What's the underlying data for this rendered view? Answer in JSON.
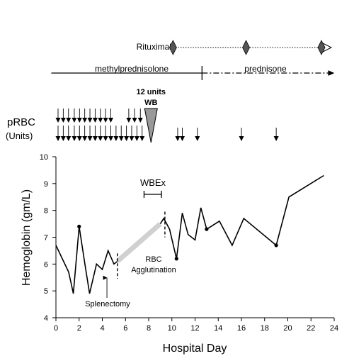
{
  "chart_data": {
    "type": "line",
    "xlabel": "Hospital Day",
    "ylabel": "Hemoglobin (gm/L)",
    "xlim": [
      0,
      24
    ],
    "ylim": [
      4,
      10
    ],
    "x_ticks": [
      "0",
      "2",
      "4",
      "6",
      "8",
      "10",
      "12",
      "14",
      "16",
      "18",
      "20",
      "22",
      "24"
    ],
    "y_ticks": [
      "4",
      "5",
      "6",
      "7",
      "8",
      "9",
      "10"
    ],
    "grid": false,
    "series": [
      {
        "points": [
          [
            0,
            6.7
          ],
          [
            1.1,
            5.7
          ],
          [
            1.5,
            4.9
          ],
          [
            2,
            7.4
          ],
          [
            2.5,
            6.0
          ],
          [
            2.9,
            4.9
          ],
          [
            3.5,
            6.0
          ],
          [
            4.0,
            5.8
          ],
          [
            4.5,
            6.5
          ],
          [
            5.0,
            6.0
          ],
          [
            5.3,
            6.1
          ]
        ]
      },
      {
        "points": [
          [
            9.0,
            7.5
          ],
          [
            9.3,
            7.7
          ],
          [
            9.8,
            7.3
          ],
          [
            10.4,
            6.2
          ],
          [
            10.9,
            7.9
          ],
          [
            11.4,
            7.1
          ],
          [
            12.0,
            6.9
          ],
          [
            12.5,
            8.1
          ],
          [
            13.0,
            7.3
          ],
          [
            14.1,
            7.6
          ],
          [
            15.2,
            6.7
          ],
          [
            16.2,
            7.7
          ],
          [
            19.0,
            6.7
          ],
          [
            20.1,
            8.5
          ],
          [
            23.1,
            9.3
          ]
        ]
      }
    ],
    "marked_points": [
      [
        2,
        7.4
      ],
      [
        10.4,
        6.2
      ],
      [
        13.0,
        7.3
      ],
      [
        19.0,
        6.7
      ]
    ],
    "gap_segment": {
      "from": [
        5.3,
        6.1
      ],
      "to": [
        9.0,
        7.5
      ],
      "color": "#d0d0d0"
    },
    "annotations": {
      "splenectomy": {
        "text": "Splenectomy",
        "x": 4.4,
        "y": 5.7
      },
      "rbc_agglutination": {
        "line1": "RBC",
        "line2": "Agglutination",
        "x": 7.2
      },
      "dashed_markers_x": [
        5.3,
        9.4
      ],
      "wbex": {
        "text": "WBEx",
        "x_start": 7.6,
        "x_end": 9.1,
        "y": 8.6
      }
    },
    "therapies": {
      "rituximab": {
        "label": "Rituximab",
        "dose_days": [
          10.1,
          16.4,
          22.9
        ]
      },
      "methylprednisolone": {
        "label": "methylprednisolone",
        "start": -0.4,
        "end": 12.6
      },
      "prednisone": {
        "label": "prednisone",
        "start": 12.6,
        "end": 23.1
      }
    },
    "prbc": {
      "label_line1": "pRBC",
      "label_line2": "(Units)",
      "row1_days": [
        0,
        0.45,
        0.9,
        1.4,
        1.85,
        2.3,
        2.75,
        3.2,
        3.65,
        4.1,
        4.55,
        6.1,
        6.6,
        7.1
      ],
      "row2_days": [
        0,
        0.45,
        0.9,
        1.4,
        1.85,
        2.3,
        2.75,
        3.2,
        3.65,
        4.1,
        4.55,
        5.0,
        5.45,
        5.9,
        6.35,
        6.8,
        7.25
      ],
      "single_days": [
        10.5,
        10.9,
        12.2,
        16.0,
        19.0
      ],
      "wb": {
        "title": "12 units",
        "subtitle": "WB",
        "day": 8.2,
        "color": "#999999"
      }
    }
  }
}
